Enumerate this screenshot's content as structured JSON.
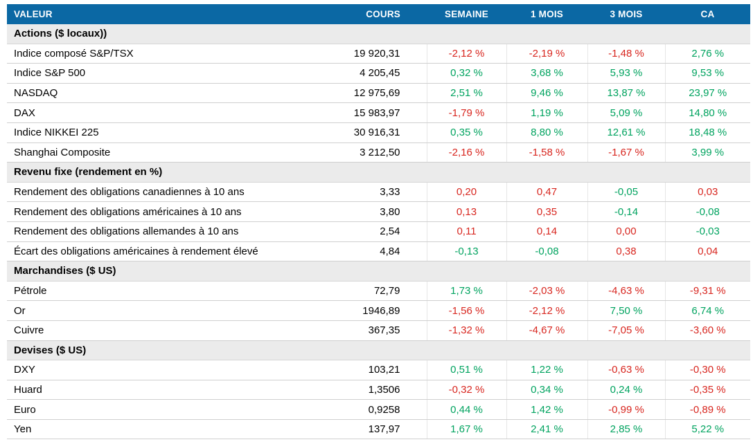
{
  "colors": {
    "header_bg": "#0b68a4",
    "header_text": "#ffffff",
    "section_bg": "#ebebeb",
    "positive": "#00a35f",
    "negative": "#d8261f",
    "row_border": "#cfcfcf"
  },
  "chart_data": {
    "type": "table",
    "columns": [
      "VALEUR",
      "COURS",
      "SEMAINE",
      "1 MOIS",
      "3 MOIS",
      "CA"
    ],
    "sections": [
      {
        "title": "Actions ($ locaux))",
        "rows": [
          {
            "valeur": "Indice composé S&P/TSX",
            "cours": "19 920,31",
            "pct": [
              [
                "-2,12 %",
                "neg"
              ],
              [
                "-2,19 %",
                "neg"
              ],
              [
                "-1,48 %",
                "neg"
              ],
              [
                "2,76 %",
                "pos"
              ]
            ]
          },
          {
            "valeur": "Indice S&P 500",
            "cours": "4 205,45",
            "pct": [
              [
                "0,32 %",
                "pos"
              ],
              [
                "3,68 %",
                "pos"
              ],
              [
                "5,93 %",
                "pos"
              ],
              [
                "9,53 %",
                "pos"
              ]
            ]
          },
          {
            "valeur": "NASDAQ",
            "cours": "12 975,69",
            "pct": [
              [
                "2,51 %",
                "pos"
              ],
              [
                "9,46 %",
                "pos"
              ],
              [
                "13,87 %",
                "pos"
              ],
              [
                "23,97 %",
                "pos"
              ]
            ]
          },
          {
            "valeur": "DAX",
            "cours": "15 983,97",
            "pct": [
              [
                "-1,79 %",
                "neg"
              ],
              [
                "1,19 %",
                "pos"
              ],
              [
                "5,09 %",
                "pos"
              ],
              [
                "14,80 %",
                "pos"
              ]
            ]
          },
          {
            "valeur": "Indice NIKKEI 225",
            "cours": "30 916,31",
            "pct": [
              [
                "0,35 %",
                "pos"
              ],
              [
                "8,80 %",
                "pos"
              ],
              [
                "12,61 %",
                "pos"
              ],
              [
                "18,48 %",
                "pos"
              ]
            ]
          },
          {
            "valeur": "Shanghai Composite",
            "cours": "3 212,50",
            "pct": [
              [
                "-2,16 %",
                "neg"
              ],
              [
                "-1,58 %",
                "neg"
              ],
              [
                "-1,67 %",
                "neg"
              ],
              [
                "3,99 %",
                "pos"
              ]
            ]
          }
        ]
      },
      {
        "title": "Revenu fixe (rendement en %)",
        "rows": [
          {
            "valeur": "Rendement des obligations canadiennes à 10 ans",
            "cours": "3,33",
            "pct": [
              [
                "0,20",
                "neg"
              ],
              [
                "0,47",
                "neg"
              ],
              [
                "-0,05",
                "pos"
              ],
              [
                "0,03",
                "neg"
              ]
            ]
          },
          {
            "valeur": "Rendement des obligations américaines à 10 ans",
            "cours": "3,80",
            "pct": [
              [
                "0,13",
                "neg"
              ],
              [
                "0,35",
                "neg"
              ],
              [
                "-0,14",
                "pos"
              ],
              [
                "-0,08",
                "pos"
              ]
            ]
          },
          {
            "valeur": "Rendement des obligations allemandes à 10 ans",
            "cours": "2,54",
            "pct": [
              [
                "0,11",
                "neg"
              ],
              [
                "0,14",
                "neg"
              ],
              [
                "0,00",
                "neg"
              ],
              [
                "-0,03",
                "pos"
              ]
            ]
          },
          {
            "valeur": "Écart des obligations américaines à rendement élevé",
            "cours": "4,84",
            "pct": [
              [
                "-0,13",
                "pos"
              ],
              [
                "-0,08",
                "pos"
              ],
              [
                "0,38",
                "neg"
              ],
              [
                "0,04",
                "neg"
              ]
            ]
          }
        ]
      },
      {
        "title": "Marchandises ($ US)",
        "rows": [
          {
            "valeur": "Pétrole",
            "cours": "72,79",
            "pct": [
              [
                "1,73 %",
                "pos"
              ],
              [
                "-2,03 %",
                "neg"
              ],
              [
                "-4,63 %",
                "neg"
              ],
              [
                "-9,31 %",
                "neg"
              ]
            ]
          },
          {
            "valeur": "Or",
            "cours": "1946,89",
            "pct": [
              [
                "-1,56 %",
                "neg"
              ],
              [
                "-2,12 %",
                "neg"
              ],
              [
                "7,50 %",
                "pos"
              ],
              [
                "6,74 %",
                "pos"
              ]
            ]
          },
          {
            "valeur": "Cuivre",
            "cours": "367,35",
            "pct": [
              [
                "-1,32 %",
                "neg"
              ],
              [
                "-4,67 %",
                "neg"
              ],
              [
                "-7,05 %",
                "neg"
              ],
              [
                "-3,60 %",
                "neg"
              ]
            ]
          }
        ]
      },
      {
        "title": "Devises ($ US)",
        "rows": [
          {
            "valeur": "DXY",
            "cours": "103,21",
            "pct": [
              [
                "0,51 %",
                "pos"
              ],
              [
                "1,22 %",
                "pos"
              ],
              [
                "-0,63 %",
                "neg"
              ],
              [
                "-0,30 %",
                "neg"
              ]
            ]
          },
          {
            "valeur": "Huard",
            "cours": "1,3506",
            "pct": [
              [
                "-0,32 %",
                "neg"
              ],
              [
                "0,34 %",
                "pos"
              ],
              [
                "0,24 %",
                "pos"
              ],
              [
                "-0,35 %",
                "neg"
              ]
            ]
          },
          {
            "valeur": "Euro",
            "cours": "0,9258",
            "pct": [
              [
                "0,44 %",
                "pos"
              ],
              [
                "1,42 %",
                "pos"
              ],
              [
                "-0,99 %",
                "neg"
              ],
              [
                "-0,89 %",
                "neg"
              ]
            ]
          },
          {
            "valeur": "Yen",
            "cours": "137,97",
            "pct": [
              [
                "1,67 %",
                "pos"
              ],
              [
                "2,41 %",
                "pos"
              ],
              [
                "2,85 %",
                "pos"
              ],
              [
                "5,22 %",
                "pos"
              ]
            ]
          }
        ]
      }
    ]
  }
}
